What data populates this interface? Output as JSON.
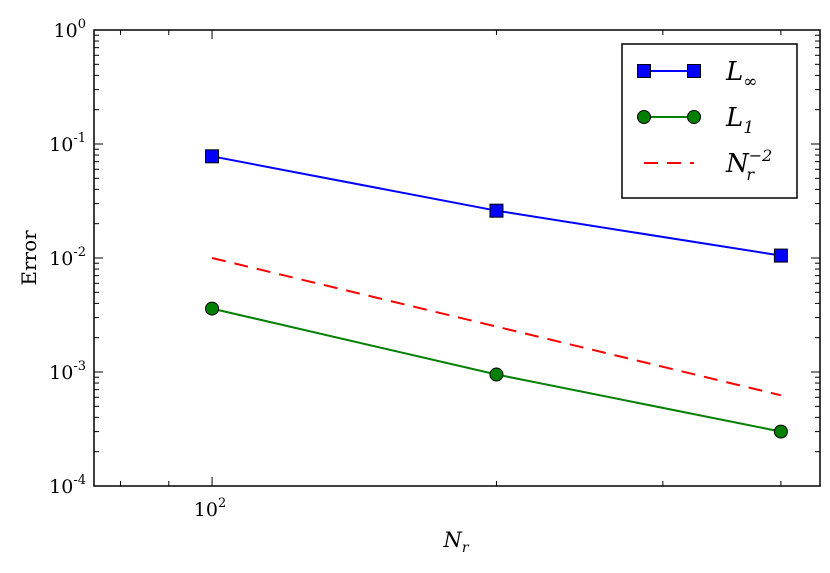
{
  "chart_data": {
    "type": "line",
    "x_scale": "log",
    "y_scale": "log",
    "xlabel": "N_r",
    "xlabel_parts": {
      "base": "N",
      "sub": "r"
    },
    "ylabel": "Error",
    "xlim": [
      75,
      440
    ],
    "ylim": [
      0.0001,
      1
    ],
    "x_ticks": [
      {
        "value": 100,
        "base": "10",
        "exp": "2"
      }
    ],
    "y_ticks": [
      {
        "value": 0.0001,
        "base": "10",
        "exp": "-4"
      },
      {
        "value": 0.001,
        "base": "10",
        "exp": "-3"
      },
      {
        "value": 0.01,
        "base": "10",
        "exp": "-2"
      },
      {
        "value": 0.1,
        "base": "10",
        "exp": "-1"
      },
      {
        "value": 1,
        "base": "10",
        "exp": "0"
      }
    ],
    "grid": false,
    "legend_position": "top-right",
    "series": [
      {
        "name": "L_∞",
        "legend": {
          "base": "L",
          "sub": "∞"
        },
        "color": "#0000ff",
        "marker": "square",
        "marker_fill": "#0000ff",
        "line_style": "solid",
        "x": [
          100,
          200,
          400
        ],
        "y": [
          0.078,
          0.026,
          0.0105
        ]
      },
      {
        "name": "L_1",
        "legend": {
          "base": "L",
          "sub": "1"
        },
        "color": "#008000",
        "marker": "circle",
        "marker_fill": "#008000",
        "line_style": "solid",
        "x": [
          100,
          200,
          400
        ],
        "y": [
          0.0036,
          0.00095,
          0.0003
        ]
      },
      {
        "name": "N_r^-2",
        "legend": {
          "base": "N",
          "sub": "r",
          "sup": "−2"
        },
        "color": "#ff0000",
        "marker": "none",
        "line_style": "dashed",
        "x": [
          100,
          200,
          400
        ],
        "y": [
          0.01,
          0.0025,
          0.000625
        ]
      }
    ]
  }
}
